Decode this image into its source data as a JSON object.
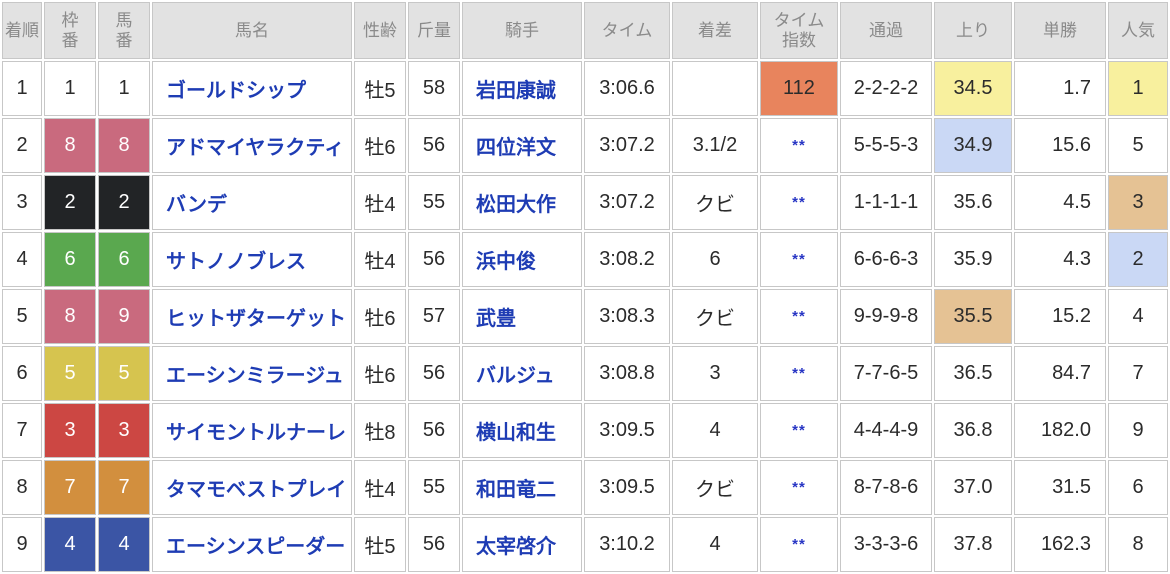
{
  "table": {
    "columns": [
      {
        "key": "rank",
        "label": "着順"
      },
      {
        "key": "frame",
        "label": "枠\n番"
      },
      {
        "key": "horse_no",
        "label": "馬\n番"
      },
      {
        "key": "name",
        "label": "馬名"
      },
      {
        "key": "sex_age",
        "label": "性齢"
      },
      {
        "key": "weight",
        "label": "斤量"
      },
      {
        "key": "jockey",
        "label": "騎手"
      },
      {
        "key": "time",
        "label": "タイム"
      },
      {
        "key": "margin",
        "label": "着差"
      },
      {
        "key": "time_index",
        "label": "タイム\n指数"
      },
      {
        "key": "passing",
        "label": "通過"
      },
      {
        "key": "last3f",
        "label": "上り"
      },
      {
        "key": "odds",
        "label": "単勝"
      },
      {
        "key": "popularity",
        "label": "人気"
      }
    ],
    "rows": [
      {
        "rank": "1",
        "frame": "1",
        "horse_no": "1",
        "name": "ゴールドシップ",
        "sex_age": "牡5",
        "weight": "58",
        "jockey": "岩田康誠",
        "time": "3:06.6",
        "margin": "",
        "time_index": "112",
        "time_index_hl": "orange",
        "passing": "2-2-2-2",
        "last3f": "34.5",
        "last3f_hl": "yellow",
        "odds": "1.7",
        "popularity": "1",
        "popularity_hl": "yellow"
      },
      {
        "rank": "2",
        "frame": "8",
        "horse_no": "8",
        "name": "アドマイヤラクティ",
        "sex_age": "牡6",
        "weight": "56",
        "jockey": "四位洋文",
        "time": "3:07.2",
        "margin": "3.1/2",
        "time_index": "**",
        "passing": "5-5-5-3",
        "last3f": "34.9",
        "last3f_hl": "blue",
        "odds": "15.6",
        "popularity": "5"
      },
      {
        "rank": "3",
        "frame": "2",
        "horse_no": "2",
        "name": "バンデ",
        "sex_age": "牡4",
        "weight": "55",
        "jockey": "松田大作",
        "time": "3:07.2",
        "margin": "クビ",
        "time_index": "**",
        "passing": "1-1-1-1",
        "last3f": "35.6",
        "odds": "4.5",
        "popularity": "3",
        "popularity_hl": "tan"
      },
      {
        "rank": "4",
        "frame": "6",
        "horse_no": "6",
        "name": "サトノノブレス",
        "sex_age": "牡4",
        "weight": "56",
        "jockey": "浜中俊",
        "time": "3:08.2",
        "margin": "6",
        "time_index": "**",
        "passing": "6-6-6-3",
        "last3f": "35.9",
        "odds": "4.3",
        "popularity": "2",
        "popularity_hl": "blue"
      },
      {
        "rank": "5",
        "frame": "8",
        "horse_no": "9",
        "name": "ヒットザターゲット",
        "sex_age": "牡6",
        "weight": "57",
        "jockey": "武豊",
        "time": "3:08.3",
        "margin": "クビ",
        "time_index": "**",
        "passing": "9-9-9-8",
        "last3f": "35.5",
        "last3f_hl": "tan",
        "odds": "15.2",
        "popularity": "4"
      },
      {
        "rank": "6",
        "frame": "5",
        "horse_no": "5",
        "name": "エーシンミラージュ",
        "sex_age": "牡6",
        "weight": "56",
        "jockey": "バルジュ",
        "time": "3:08.8",
        "margin": "3",
        "time_index": "**",
        "passing": "7-7-6-5",
        "last3f": "36.5",
        "odds": "84.7",
        "popularity": "7"
      },
      {
        "rank": "7",
        "frame": "3",
        "horse_no": "3",
        "name": "サイモントルナーレ",
        "sex_age": "牡8",
        "weight": "56",
        "jockey": "横山和生",
        "time": "3:09.5",
        "margin": "4",
        "time_index": "**",
        "passing": "4-4-4-9",
        "last3f": "36.8",
        "odds": "182.0",
        "popularity": "9"
      },
      {
        "rank": "8",
        "frame": "7",
        "horse_no": "7",
        "name": "タマモベストプレイ",
        "sex_age": "牡4",
        "weight": "55",
        "jockey": "和田竜二",
        "time": "3:09.5",
        "margin": "クビ",
        "time_index": "**",
        "passing": "8-7-8-6",
        "last3f": "37.0",
        "odds": "31.5",
        "popularity": "6"
      },
      {
        "rank": "9",
        "frame": "4",
        "horse_no": "4",
        "name": "エーシンスピーダー",
        "sex_age": "牡5",
        "weight": "56",
        "jockey": "太宰啓介",
        "time": "3:10.2",
        "margin": "4",
        "time_index": "**",
        "passing": "3-3-3-6",
        "last3f": "37.8",
        "odds": "162.3",
        "popularity": "8"
      }
    ]
  },
  "colors": {
    "header_bg": "#e2e2e2",
    "header_text": "#8a8a8a",
    "border": "#c7c7c7",
    "body_text": "#2b2b2b",
    "link_blue": "#1e3cb4",
    "stars_blue": "#2735c4",
    "frame_colors": {
      "1": {
        "bg": "#ffffff",
        "fg": "#2b2b2b"
      },
      "2": {
        "bg": "#222426",
        "fg": "#ffffff"
      },
      "3": {
        "bg": "#cc4743",
        "fg": "#ffffff"
      },
      "4": {
        "bg": "#3b55a5",
        "fg": "#ffffff"
      },
      "5": {
        "bg": "#d6c44f",
        "fg": "#ffffff"
      },
      "6": {
        "bg": "#5aa84f",
        "fg": "#ffffff"
      },
      "7": {
        "bg": "#d28f3e",
        "fg": "#ffffff"
      },
      "8": {
        "bg": "#c96a7e",
        "fg": "#ffffff"
      }
    },
    "highlights": {
      "orange": "#e8845d",
      "yellow": "#f8f09e",
      "blue": "#cad8f5",
      "tan": "#e5c294"
    }
  }
}
